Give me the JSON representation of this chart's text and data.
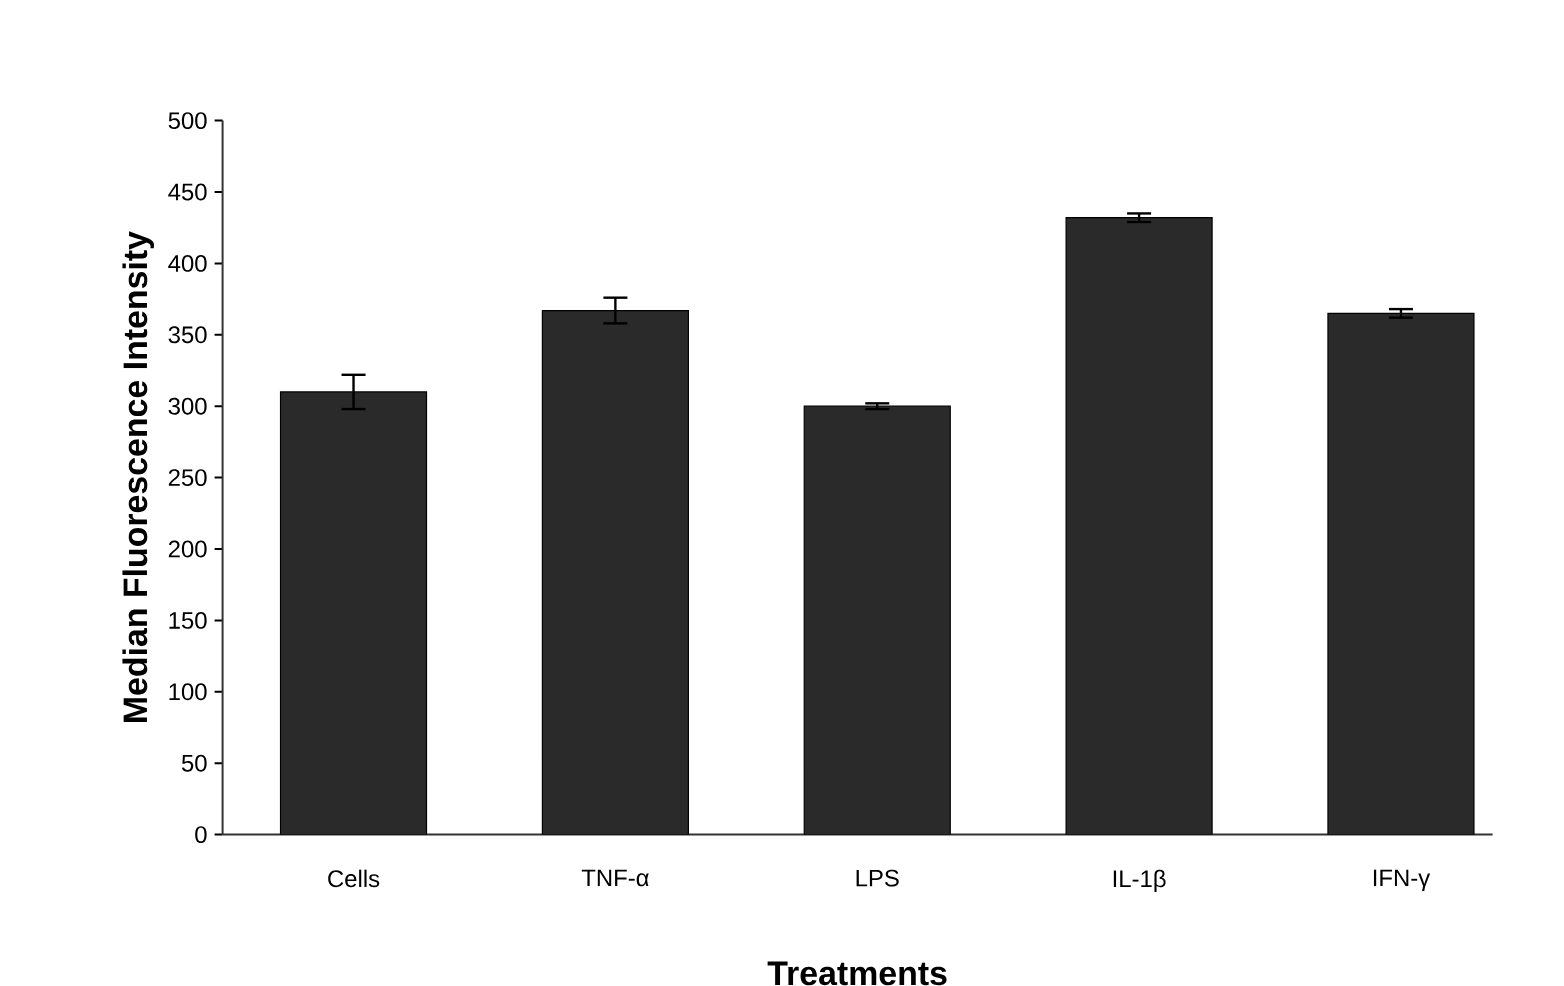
{
  "chart_data": {
    "type": "bar",
    "xlabel": "Treatments",
    "ylabel": "Median Fluorescence Intensity",
    "categories": [
      "Cells",
      "TNF-α",
      "LPS",
      "IL-1β",
      "IFN-γ"
    ],
    "values": [
      310,
      367,
      300,
      432,
      365
    ],
    "errors": [
      12,
      9,
      2,
      3,
      3
    ],
    "color": "#2a2a2a",
    "ylim": [
      0,
      500
    ],
    "yticks": [
      0,
      50,
      100,
      150,
      200,
      250,
      300,
      350,
      400,
      450,
      500
    ]
  }
}
